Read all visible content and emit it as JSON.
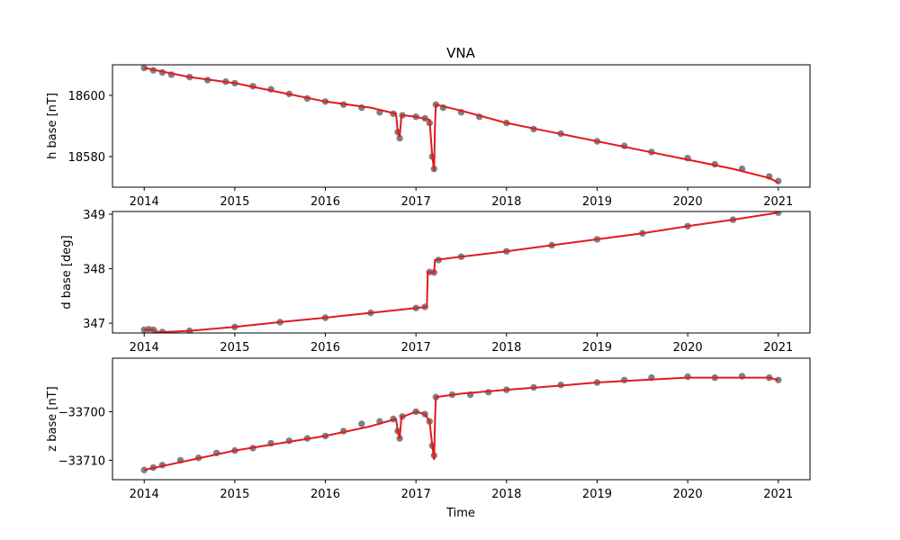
{
  "chart_data": [
    {
      "type": "scatter",
      "title": "VNA",
      "ylabel": "h base [nT]",
      "xlabel": "",
      "xlim": [
        2013.65,
        2021.35
      ],
      "ylim": [
        18570.0,
        18610.0
      ],
      "xticks": [
        2014,
        2015,
        2016,
        2017,
        2018,
        2019,
        2020,
        2021
      ],
      "xtick_labels": [
        "2014",
        "2015",
        "2016",
        "2017",
        "2018",
        "2019",
        "2020",
        "2021"
      ],
      "yticks": [
        18580,
        18600
      ],
      "ytick_labels": [
        "18580",
        "18600"
      ],
      "colors": {
        "points": "#808080",
        "line": "#e31a1c"
      },
      "series": [
        {
          "kind": "points",
          "x": [
            2014.0,
            2014.1,
            2014.2,
            2014.3,
            2014.5,
            2014.7,
            2014.9,
            2015.0,
            2015.2,
            2015.4,
            2015.6,
            2015.8,
            2016.0,
            2016.2,
            2016.4,
            2016.6,
            2016.75,
            2016.8,
            2016.82,
            2016.85,
            2017.0,
            2017.1,
            2017.15,
            2017.18,
            2017.2,
            2017.22,
            2017.3,
            2017.5,
            2017.7,
            2018.0,
            2018.3,
            2018.6,
            2019.0,
            2019.3,
            2019.6,
            2020.0,
            2020.3,
            2020.6,
            2020.9,
            2021.0
          ],
          "y": [
            18609.0,
            18608.2,
            18607.5,
            18606.8,
            18606.0,
            18605.0,
            18604.5,
            18604.0,
            18603.0,
            18602.0,
            18600.5,
            18599.0,
            18598.0,
            18597.0,
            18596.0,
            18594.5,
            18594.0,
            18588.0,
            18586.0,
            18593.5,
            18593.0,
            18592.5,
            18591.0,
            18580.0,
            18576.0,
            18597.0,
            18596.0,
            18594.5,
            18593.0,
            18591.0,
            18589.0,
            18587.5,
            18585.0,
            18583.5,
            18581.5,
            18579.5,
            18577.5,
            18576.0,
            18573.5,
            18572.0
          ]
        },
        {
          "kind": "line",
          "x": [
            2014.0,
            2014.5,
            2015.0,
            2015.5,
            2016.0,
            2016.5,
            2016.78,
            2016.8,
            2016.82,
            2016.84,
            2016.86,
            2017.0,
            2017.15,
            2017.18,
            2017.2,
            2017.21,
            2017.22,
            2017.5,
            2018.0,
            2018.5,
            2019.0,
            2019.5,
            2020.0,
            2020.5,
            2020.9,
            2021.0
          ],
          "y": [
            18609.0,
            18606.0,
            18604.0,
            18601.0,
            18598.0,
            18596.0,
            18594.0,
            18588.0,
            18586.5,
            18593.5,
            18593.5,
            18593.0,
            18592.0,
            18580.0,
            18575.5,
            18590.0,
            18597.0,
            18595.0,
            18591.0,
            18588.0,
            18585.0,
            18582.0,
            18579.0,
            18576.0,
            18573.0,
            18571.5
          ]
        }
      ]
    },
    {
      "type": "scatter",
      "title": "",
      "ylabel": "d base [deg]",
      "xlabel": "",
      "xlim": [
        2013.65,
        2021.35
      ],
      "ylim": [
        346.82,
        349.05
      ],
      "xticks": [
        2014,
        2015,
        2016,
        2017,
        2018,
        2019,
        2020,
        2021
      ],
      "xtick_labels": [
        "2014",
        "2015",
        "2016",
        "2017",
        "2018",
        "2019",
        "2020",
        "2021"
      ],
      "yticks": [
        347,
        348,
        349
      ],
      "ytick_labels": [
        "347",
        "348",
        "349"
      ],
      "colors": {
        "points": "#808080",
        "line": "#e31a1c"
      },
      "series": [
        {
          "kind": "points",
          "x": [
            2014.0,
            2014.05,
            2014.1,
            2014.12,
            2014.2,
            2014.5,
            2015.0,
            2015.5,
            2016.0,
            2016.5,
            2017.0,
            2017.1,
            2017.15,
            2017.2,
            2017.25,
            2017.5,
            2018.0,
            2018.5,
            2019.0,
            2019.5,
            2020.0,
            2020.5,
            2021.0
          ],
          "y": [
            346.88,
            346.89,
            346.88,
            346.84,
            346.84,
            346.86,
            346.93,
            347.02,
            347.1,
            347.19,
            347.28,
            347.3,
            347.94,
            347.93,
            348.16,
            348.22,
            348.32,
            348.43,
            348.54,
            348.65,
            348.78,
            348.9,
            349.03
          ]
        },
        {
          "kind": "line",
          "x": [
            2014.0,
            2014.1,
            2014.12,
            2014.5,
            2015.0,
            2015.5,
            2016.0,
            2016.5,
            2017.0,
            2017.12,
            2017.13,
            2017.2,
            2017.21,
            2017.5,
            2018.0,
            2018.5,
            2019.0,
            2019.5,
            2020.0,
            2020.5,
            2021.0
          ],
          "y": [
            346.88,
            346.88,
            346.83,
            346.86,
            346.93,
            347.02,
            347.1,
            347.19,
            347.28,
            347.3,
            347.94,
            347.93,
            348.16,
            348.22,
            348.32,
            348.43,
            348.54,
            348.65,
            348.78,
            348.9,
            349.03
          ]
        }
      ]
    },
    {
      "type": "scatter",
      "title": "",
      "ylabel": "z base [nT]",
      "xlabel": "Time",
      "xlim": [
        2013.65,
        2021.35
      ],
      "ylim": [
        -33714.0,
        -33689.0
      ],
      "xticks": [
        2014,
        2015,
        2016,
        2017,
        2018,
        2019,
        2020,
        2021
      ],
      "xtick_labels": [
        "2014",
        "2015",
        "2016",
        "2017",
        "2018",
        "2019",
        "2020",
        "2021"
      ],
      "yticks": [
        -33710,
        -33700
      ],
      "ytick_labels": [
        "−33710",
        "−33700"
      ],
      "colors": {
        "points": "#808080",
        "line": "#e31a1c"
      },
      "series": [
        {
          "kind": "points",
          "x": [
            2014.0,
            2014.1,
            2014.2,
            2014.4,
            2014.6,
            2014.8,
            2015.0,
            2015.2,
            2015.4,
            2015.6,
            2015.8,
            2016.0,
            2016.2,
            2016.4,
            2016.6,
            2016.75,
            2016.8,
            2016.82,
            2016.85,
            2017.0,
            2017.1,
            2017.15,
            2017.18,
            2017.2,
            2017.22,
            2017.4,
            2017.6,
            2017.8,
            2018.0,
            2018.3,
            2018.6,
            2019.0,
            2019.3,
            2019.6,
            2020.0,
            2020.3,
            2020.6,
            2020.9,
            2021.0
          ],
          "y": [
            -33712.0,
            -33711.5,
            -33711.0,
            -33710.0,
            -33709.5,
            -33708.5,
            -33708.0,
            -33707.5,
            -33706.5,
            -33706.0,
            -33705.5,
            -33705.0,
            -33704.0,
            -33702.5,
            -33702.0,
            -33701.5,
            -33704.0,
            -33705.5,
            -33701.0,
            -33700.0,
            -33700.5,
            -33702.0,
            -33707.0,
            -33709.0,
            -33697.0,
            -33696.5,
            -33696.5,
            -33696.0,
            -33695.5,
            -33695.0,
            -33694.5,
            -33694.0,
            -33693.5,
            -33693.0,
            -33692.8,
            -33693.0,
            -33692.7,
            -33693.0,
            -33693.5
          ]
        },
        {
          "kind": "line",
          "x": [
            2014.0,
            2014.5,
            2015.0,
            2015.5,
            2016.0,
            2016.5,
            2016.78,
            2016.8,
            2016.82,
            2016.84,
            2016.86,
            2017.0,
            2017.1,
            2017.15,
            2017.18,
            2017.2,
            2017.21,
            2017.22,
            2017.5,
            2018.0,
            2018.5,
            2019.0,
            2019.5,
            2020.0,
            2020.5,
            2020.9,
            2021.0
          ],
          "y": [
            -33712.0,
            -33710.0,
            -33708.0,
            -33706.5,
            -33705.0,
            -33703.0,
            -33701.5,
            -33704.0,
            -33705.5,
            -33701.0,
            -33701.0,
            -33700.0,
            -33700.5,
            -33702.0,
            -33707.0,
            -33709.8,
            -33702.0,
            -33697.0,
            -33696.3,
            -33695.5,
            -33694.8,
            -33694.0,
            -33693.5,
            -33693.0,
            -33693.0,
            -33693.0,
            -33693.5
          ]
        }
      ]
    }
  ]
}
